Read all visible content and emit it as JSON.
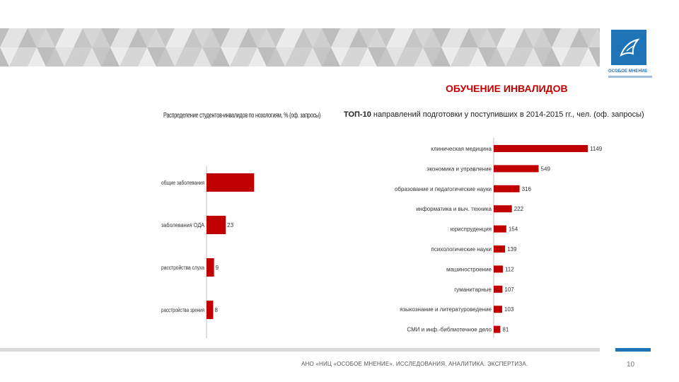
{
  "slide": {
    "title": "ОБУЧЕНИЕ ИНВАЛИДОВ",
    "page_number": "10",
    "footer": "АНО «НИЦ «ОСОБОЕ МНЕНИЕ». ИССЛЕДОВАНИЯ. АНАЛИТИКА. ЭКСПЕРТИЗА.",
    "logo_text": "ОСОБОЕ МНЕНИЕ",
    "colors": {
      "bar": "#c00000",
      "title": "#c00000",
      "brand": "#1f73b7"
    }
  },
  "chart_data": [
    {
      "type": "bar",
      "orientation": "horizontal",
      "title": "Распределение студентов-инвалидов по нозологиям, % (оф. запросы)",
      "categories": [
        "общие заболевания",
        "заболевания ОДА",
        "расстройства слуха",
        "расстройства зрения"
      ],
      "values": [
        57,
        23,
        9,
        8
      ],
      "xlim": [
        0,
        100
      ]
    },
    {
      "type": "bar",
      "orientation": "horizontal",
      "title_prefix": "ТОП-10",
      "title_rest": " направлений подготовки у поступивших в 2014-2015 гг., чел. (оф. запросы)",
      "categories": [
        "клиническая медицина",
        "экономика и управление",
        "образование и педагогические науки",
        "информатика и выч. техника",
        "юриспруденция",
        "психологические науки",
        "машиностроение",
        "гуманитарные",
        "языкознание и литературоведение",
        "СМИ и инф.-библиотечное дело"
      ],
      "values": [
        1149,
        549,
        316,
        222,
        154,
        139,
        112,
        107,
        103,
        81
      ],
      "xlim": [
        0,
        1149
      ]
    }
  ]
}
